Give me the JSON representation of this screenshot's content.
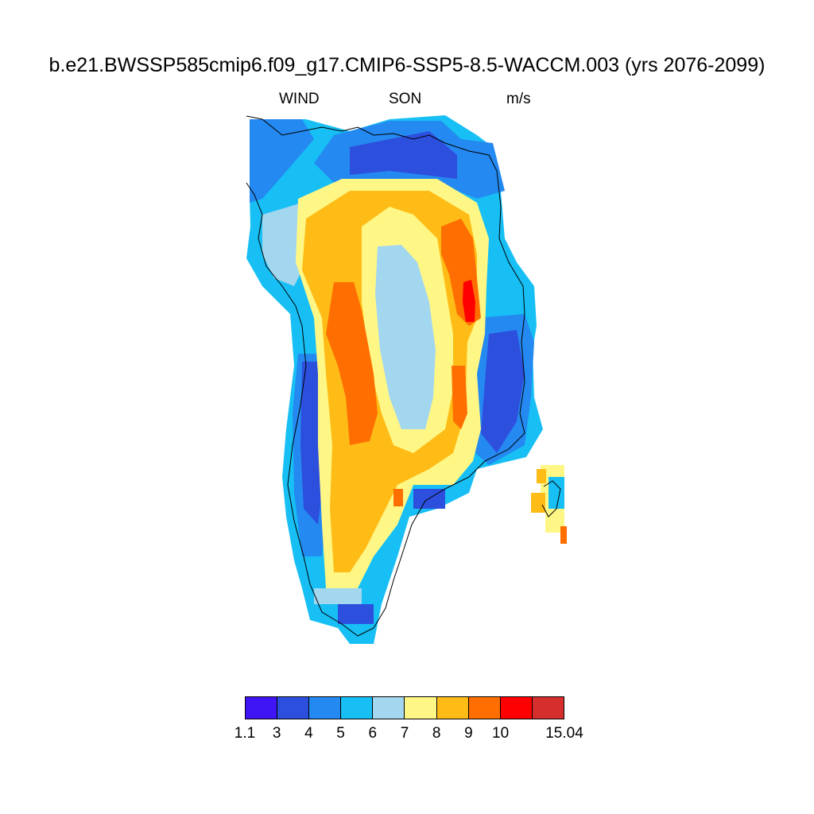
{
  "title": "b.e21.BWSSP585cmip6.f09_g17.CMIP6-SSP5-8.5-WACCM.003 (yrs 2076-2099)",
  "subtitle": {
    "variable": "WIND",
    "season": "SON",
    "units": "m/s"
  },
  "colorbar": {
    "colors": [
      "#3f14f5",
      "#2d4fde",
      "#2489f0",
      "#17bff5",
      "#a3d6ef",
      "#fff785",
      "#ffbc17",
      "#ff6e00",
      "#ff0000",
      "#d62d2d"
    ],
    "labels": [
      "1.1",
      "3",
      "4",
      "5",
      "6",
      "7",
      "8",
      "9",
      "10",
      "15.04"
    ]
  },
  "map": {
    "region": "Greenland",
    "field": "wind speed",
    "description_bands": [
      {
        "class": 1,
        "level": "3-4 m/s"
      },
      {
        "class": 4,
        "level": "6-7 m/s"
      },
      {
        "class": 5,
        "level": "7-8 m/s"
      },
      {
        "class": 6,
        "level": "8-9 m/s"
      },
      {
        "class": 7,
        "level": "9-10 m/s"
      },
      {
        "class": 8,
        "level": "10-15.04 m/s"
      }
    ]
  }
}
